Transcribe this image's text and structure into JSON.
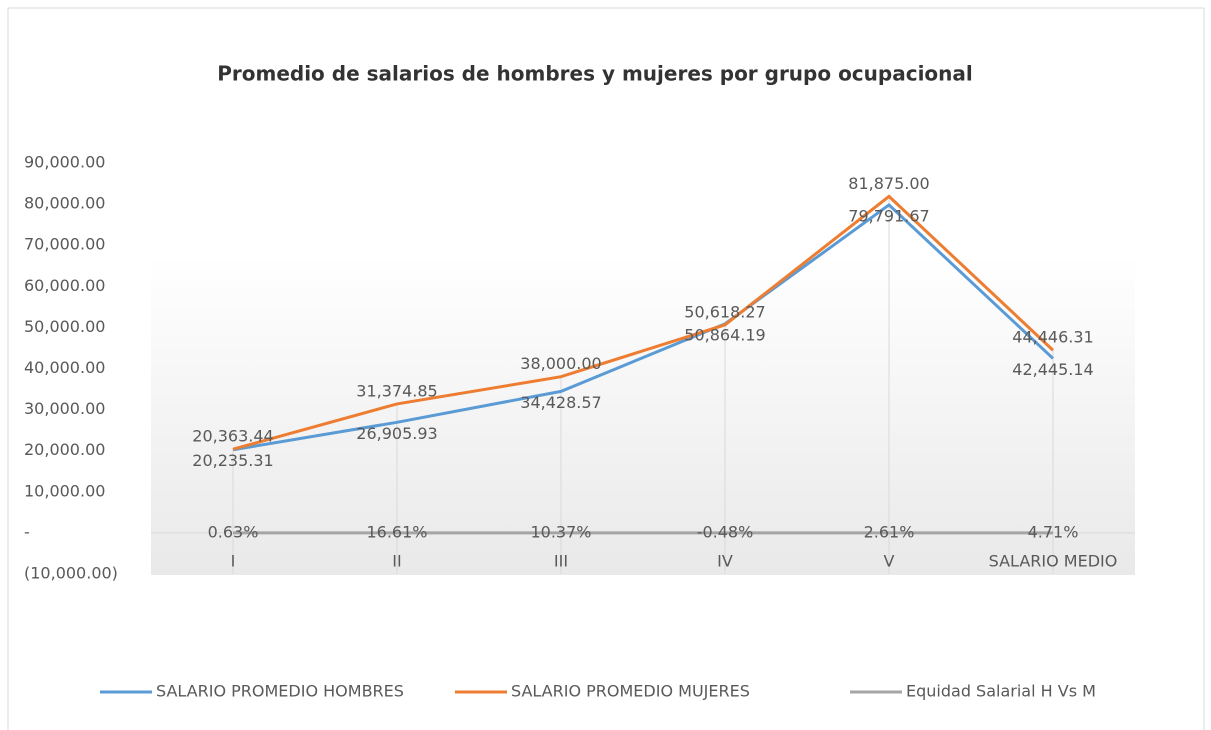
{
  "chart_data": {
    "type": "line",
    "title": "Promedio de salarios de hombres y mujeres por grupo ocupacional",
    "categories": [
      "I",
      "II",
      "III",
      "IV",
      "V",
      "SALARIO MEDIO"
    ],
    "series": [
      {
        "name": "SALARIO PROMEDIO HOMBRES",
        "color": "#5b9bd5",
        "values": [
          20235.31,
          26905.93,
          34428.57,
          50864.19,
          79791.67,
          42445.14
        ],
        "value_labels": [
          "20,235.31",
          "26,905.93",
          "34,428.57",
          "50,864.19",
          "79,791.67",
          "42,445.14"
        ]
      },
      {
        "name": "SALARIO PROMEDIO MUJERES",
        "color": "#ed7d31",
        "values": [
          20363.44,
          31374.85,
          38000.0,
          50618.27,
          81875.0,
          44446.31
        ],
        "value_labels": [
          "20,363.44",
          "31,374.85",
          "38,000.00",
          "50,618.27",
          "81,875.00",
          "44,446.31"
        ]
      },
      {
        "name": "Equidad Salarial H Vs M",
        "color": "#a5a5a5",
        "values": [
          0.0063,
          0.1661,
          0.1037,
          -0.0048,
          0.0261,
          0.0471
        ],
        "value_labels": [
          "0.63%",
          "16.61%",
          "10.37%",
          "-0.48%",
          "2.61%",
          "4.71%"
        ]
      }
    ],
    "ylim": [
      -10000,
      90000
    ],
    "yticks": [
      {
        "value": -10000,
        "label": "(10,000.00)"
      },
      {
        "value": 0,
        "label": "-"
      },
      {
        "value": 10000,
        "label": "10,000.00"
      },
      {
        "value": 20000,
        "label": "20,000.00"
      },
      {
        "value": 30000,
        "label": "30,000.00"
      },
      {
        "value": 40000,
        "label": "40,000.00"
      },
      {
        "value": 50000,
        "label": "50,000.00"
      },
      {
        "value": 60000,
        "label": "60,000.00"
      },
      {
        "value": 70000,
        "label": "70,000.00"
      },
      {
        "value": 80000,
        "label": "80,000.00"
      },
      {
        "value": 90000,
        "label": "90,000.00"
      }
    ],
    "legend": "bottom"
  }
}
